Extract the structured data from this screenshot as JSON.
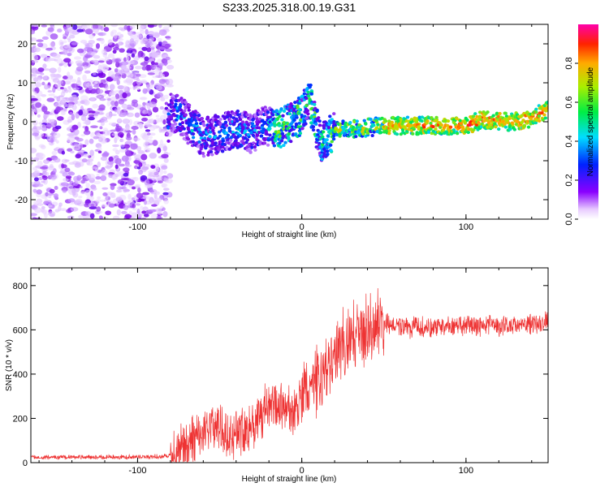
{
  "title": "S233.2025.318.00.19.G31",
  "chart_data": [
    {
      "type": "heatmap",
      "xlabel": "Height of straight line (km)",
      "ylabel": "Frequency (Hz)",
      "xlim": [
        -165,
        150
      ],
      "ylim": [
        -25,
        25
      ],
      "xticks": [
        -100,
        0,
        100
      ],
      "yticks": [
        -20,
        -10,
        0,
        10,
        20
      ],
      "colorbar": {
        "label": "Normalized spectral amplitude",
        "range": [
          0,
          1
        ],
        "ticks": [
          0.0,
          0.2,
          0.4,
          0.6,
          0.8
        ]
      },
      "ridge": [
        {
          "x": -80,
          "y": 3
        },
        {
          "x": -70,
          "y": 0
        },
        {
          "x": -60,
          "y": -4
        },
        {
          "x": -50,
          "y": -3
        },
        {
          "x": -40,
          "y": -2
        },
        {
          "x": -30,
          "y": -3
        },
        {
          "x": -22,
          "y": -1
        },
        {
          "x": -15,
          "y": -2
        },
        {
          "x": -10,
          "y": -1
        },
        {
          "x": -5,
          "y": 0
        },
        {
          "x": 0,
          "y": 2
        },
        {
          "x": 4,
          "y": 6
        },
        {
          "x": 8,
          "y": 0
        },
        {
          "x": 12,
          "y": -5
        },
        {
          "x": 16,
          "y": -4
        },
        {
          "x": 20,
          "y": -2
        },
        {
          "x": 30,
          "y": -2
        },
        {
          "x": 40,
          "y": -1.5
        },
        {
          "x": 50,
          "y": -1
        },
        {
          "x": 60,
          "y": -1
        },
        {
          "x": 80,
          "y": -1
        },
        {
          "x": 100,
          "y": -1
        },
        {
          "x": 110,
          "y": 0.5
        },
        {
          "x": 120,
          "y": 0
        },
        {
          "x": 130,
          "y": 0
        },
        {
          "x": 140,
          "y": 1
        },
        {
          "x": 150,
          "y": 3
        }
      ]
    },
    {
      "type": "line",
      "xlabel": "Height of straight line (km)",
      "ylabel": "SNR (10 * v/v)",
      "xlim": [
        -165,
        150
      ],
      "ylim": [
        0,
        880
      ],
      "xticks": [
        -100,
        0,
        100
      ],
      "yticks": [
        0,
        200,
        400,
        600,
        800
      ],
      "series": [
        {
          "name": "SNR",
          "color": "#ee3333",
          "x": [
            -165,
            -130,
            -100,
            -85,
            -78,
            -70,
            -62,
            -55,
            -48,
            -42,
            -35,
            -28,
            -22,
            -15,
            -10,
            -5,
            0,
            5,
            10,
            15,
            20,
            25,
            30,
            35,
            40,
            45,
            50,
            55,
            65,
            80,
            100,
            120,
            140,
            150
          ],
          "y": [
            25,
            25,
            25,
            28,
            35,
            70,
            140,
            170,
            150,
            130,
            160,
            180,
            230,
            260,
            250,
            220,
            290,
            340,
            370,
            420,
            480,
            530,
            560,
            580,
            610,
            630,
            640,
            620,
            610,
            610,
            615,
            620,
            625,
            640
          ]
        }
      ]
    }
  ]
}
